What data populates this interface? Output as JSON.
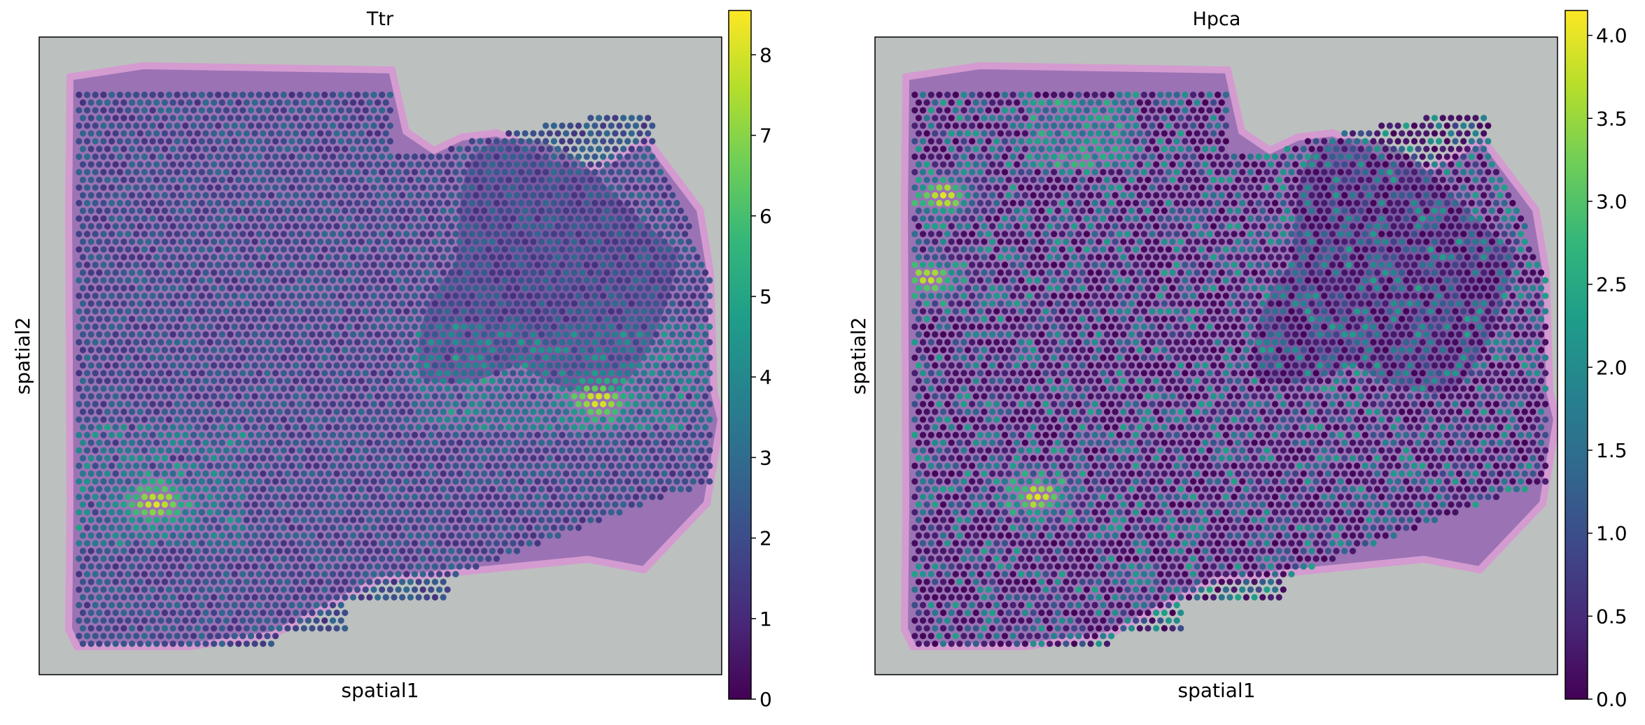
{
  "chart_data": [
    {
      "type": "scatter",
      "title": "Ttr",
      "xlabel": "spatial1",
      "ylabel": "spatial2",
      "colormap": "viridis",
      "colorbar": {
        "min": 0,
        "max": 8.55,
        "ticks": [
          0,
          1,
          2,
          3,
          4,
          5,
          6,
          7,
          8
        ]
      },
      "background": "tissue H&E image (purple/pink) on grey slide",
      "hotspots": [
        {
          "region": "right-central band",
          "u": 0.82,
          "v": 0.57,
          "value": 8.3
        },
        {
          "region": "lower-left cluster",
          "u": 0.17,
          "v": 0.73,
          "value": 8.2
        }
      ]
    },
    {
      "type": "scatter",
      "title": "Hpca",
      "xlabel": "spatial1",
      "ylabel": "spatial2",
      "colormap": "viridis",
      "colorbar": {
        "min": 0,
        "max": 4.15,
        "ticks": [
          0.0,
          0.5,
          1.0,
          1.5,
          2.0,
          2.5,
          3.0,
          3.5,
          4.0
        ],
        "tick_labels": [
          "0.0",
          "0.5",
          "1.0",
          "1.5",
          "2.0",
          "2.5",
          "3.0",
          "3.5",
          "4.0"
        ]
      },
      "background": "tissue H&E image (purple/pink) on grey slide",
      "hotspots": [
        {
          "region": "upper-left arc",
          "u": 0.1,
          "v": 0.25,
          "value": 4.0
        },
        {
          "region": "left mid band",
          "u": 0.08,
          "v": 0.38,
          "value": 3.8
        },
        {
          "region": "lower arc",
          "u": 0.24,
          "v": 0.72,
          "value": 4.0
        }
      ]
    }
  ],
  "colors": {
    "slide": "#bcc0bf",
    "tissue": "#9b73b5",
    "tissue_edge": "#d49bd0",
    "dark_tissue": "#3c2c70",
    "colormap_stops": [
      "#440154",
      "#482878",
      "#3e4989",
      "#31688e",
      "#26828e",
      "#1f9e89",
      "#35b779",
      "#6ece58",
      "#b5de2b",
      "#fde725"
    ]
  }
}
